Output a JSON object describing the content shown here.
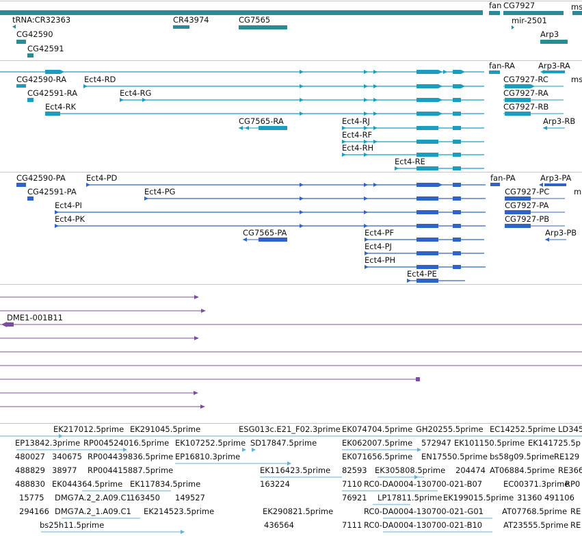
{
  "colors": {
    "gene": "#2a8a96",
    "rna": "#1a9dbf",
    "protein": "#2f63c7",
    "clone": "#7a4d9e",
    "est": "#6aaed3",
    "separator": "#c8c8c8"
  },
  "gene_labels": [
    "tRNA:CR32363",
    "CR43974",
    "CG7565",
    "fan",
    "CG7927",
    "ms",
    "CG42590",
    "mir-2501",
    "Arp3",
    "CG42591"
  ],
  "rna_labels": [
    "fan-RA",
    "Arp3-RA",
    "CG42590-RA",
    "Ect4-RD",
    "CG7927-RC",
    "ms",
    "CG42591-RA",
    "Ect4-RG",
    "CG7927-RA",
    "Ect4-RK",
    "CG7927-RB",
    "CG7565-RA",
    "Ect4-RJ",
    "Arp3-RB",
    "Ect4-RF",
    "Ect4-RH",
    "Ect4-RE"
  ],
  "protein_labels": [
    "CG42590-PA",
    "Ect4-PD",
    "fan-PA",
    "Arp3-PA",
    "CG42591-PA",
    "Ect4-PG",
    "CG7927-PC",
    "m",
    "Ect4-PI",
    "CG7927-PA",
    "Ect4-PK",
    "CG7927-PB",
    "CG7565-PA",
    "Arp3-PB",
    "Ect4-PF",
    "Ect4-PJ",
    "Ect4-PH",
    "Ect4-PE"
  ],
  "clone_labels": [
    "DME1-001B11"
  ],
  "est_labels": [
    "EK217012.5prime",
    "EK291045.5prime",
    "ESG013c.E21_F02.3prime",
    "EK074704.5prime",
    "GH20255.5prime",
    "EC14252.5prime",
    "LD345",
    "EP13842.3prime",
    "RP004524016.5prime",
    "EK107252.5prime",
    "SD17847.5prime",
    "EK062007.5prime",
    "572947",
    "EK101150.5prime",
    "EK141725.5p",
    "480027",
    "340675",
    "RP004439836.5prime",
    "EP16810.3prime",
    "EK071656.5prime",
    "EN17550.5prime",
    "bs58g09.5prime",
    "RE129",
    "488829",
    "38977",
    "RP004415887.5prime",
    "EK116423.5prime",
    "82593",
    "EK305808.5prime",
    "204474",
    "AT06884.5prime",
    "RE366",
    "488830",
    "EK044364.5prime",
    "EK117834.5prime",
    "163224",
    "7110",
    "RC0-DA0004-130700-021-B07",
    "EC00371.3prime",
    "RP0",
    "15775",
    "DMG7A.2_2.A09.C1",
    "163450",
    "149527",
    "76921",
    "LP17811.5prime",
    "EK199015.5prime",
    "31360",
    "491106",
    "294166",
    "DMG7A.2_1.A09.C1",
    "EK214523.5prime",
    "EK290821.5prime",
    "RC0-DA0004-130700-021-G01",
    "AT07768.5prime",
    "RE",
    "bs25h11.5prime",
    "436564",
    "7111",
    "RC0-DA0004-130700-021-B10",
    "AT23555.5prime",
    "RE"
  ]
}
